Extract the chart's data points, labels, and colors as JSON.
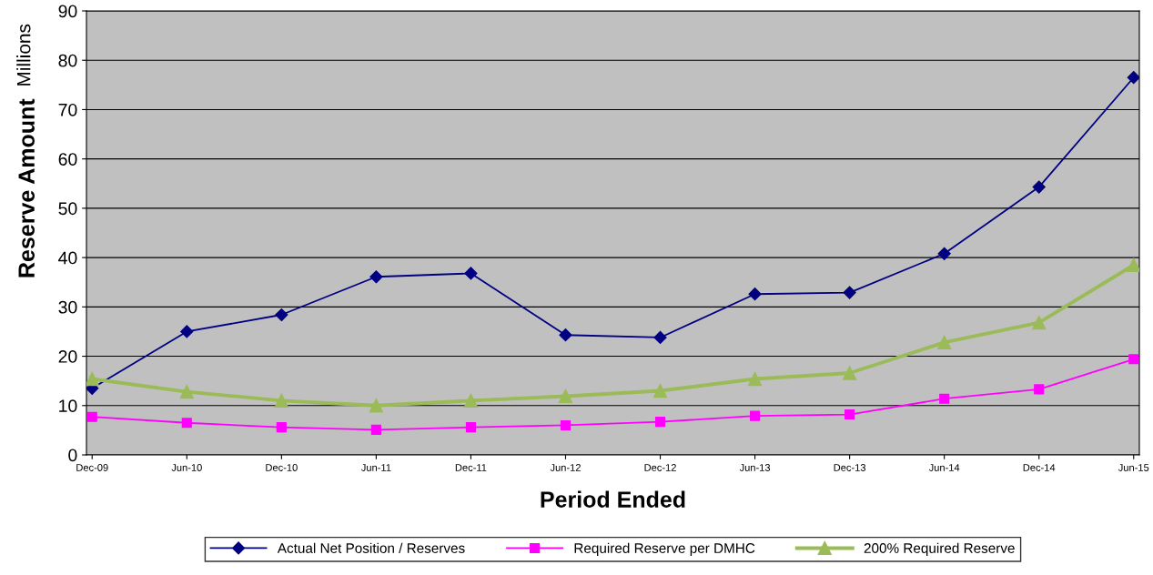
{
  "chart_data": {
    "type": "line",
    "xlabel": "Period Ended",
    "ylabel": "Reserve Amount",
    "annotations": [
      "Millions"
    ],
    "categories": [
      "Dec-09",
      "Jun-10",
      "Dec-10",
      "Jun-11",
      "Dec-11",
      "Jun-12",
      "Dec-12",
      "Jun-13",
      "Dec-13",
      "Jun-14",
      "Dec-14",
      "Jun-15"
    ],
    "series": [
      {
        "name": "Actual Net Position / Reserves",
        "color": "#000080",
        "marker": "diamond",
        "values": [
          13.5,
          25.0,
          28.4,
          36.1,
          36.8,
          24.3,
          23.8,
          32.6,
          32.9,
          40.8,
          54.3,
          76.5
        ]
      },
      {
        "name": "Required Reserve per DMHC",
        "color": "#ff00ff",
        "marker": "square",
        "values": [
          7.7,
          6.5,
          5.6,
          5.1,
          5.6,
          6.0,
          6.7,
          7.9,
          8.2,
          11.4,
          13.3,
          19.4
        ]
      },
      {
        "name": "200% Required Reserve",
        "color": "#9bbb59",
        "marker": "triangle",
        "values": [
          15.4,
          12.8,
          11.0,
          10.0,
          11.0,
          11.9,
          13.0,
          15.4,
          16.6,
          22.8,
          26.8,
          38.5
        ]
      }
    ],
    "ylim": [
      0,
      90
    ],
    "yticks": [
      0,
      10,
      20,
      30,
      40,
      50,
      60,
      70,
      80,
      90
    ],
    "grid": "y",
    "legend": "bottom",
    "line_style": "solid"
  }
}
